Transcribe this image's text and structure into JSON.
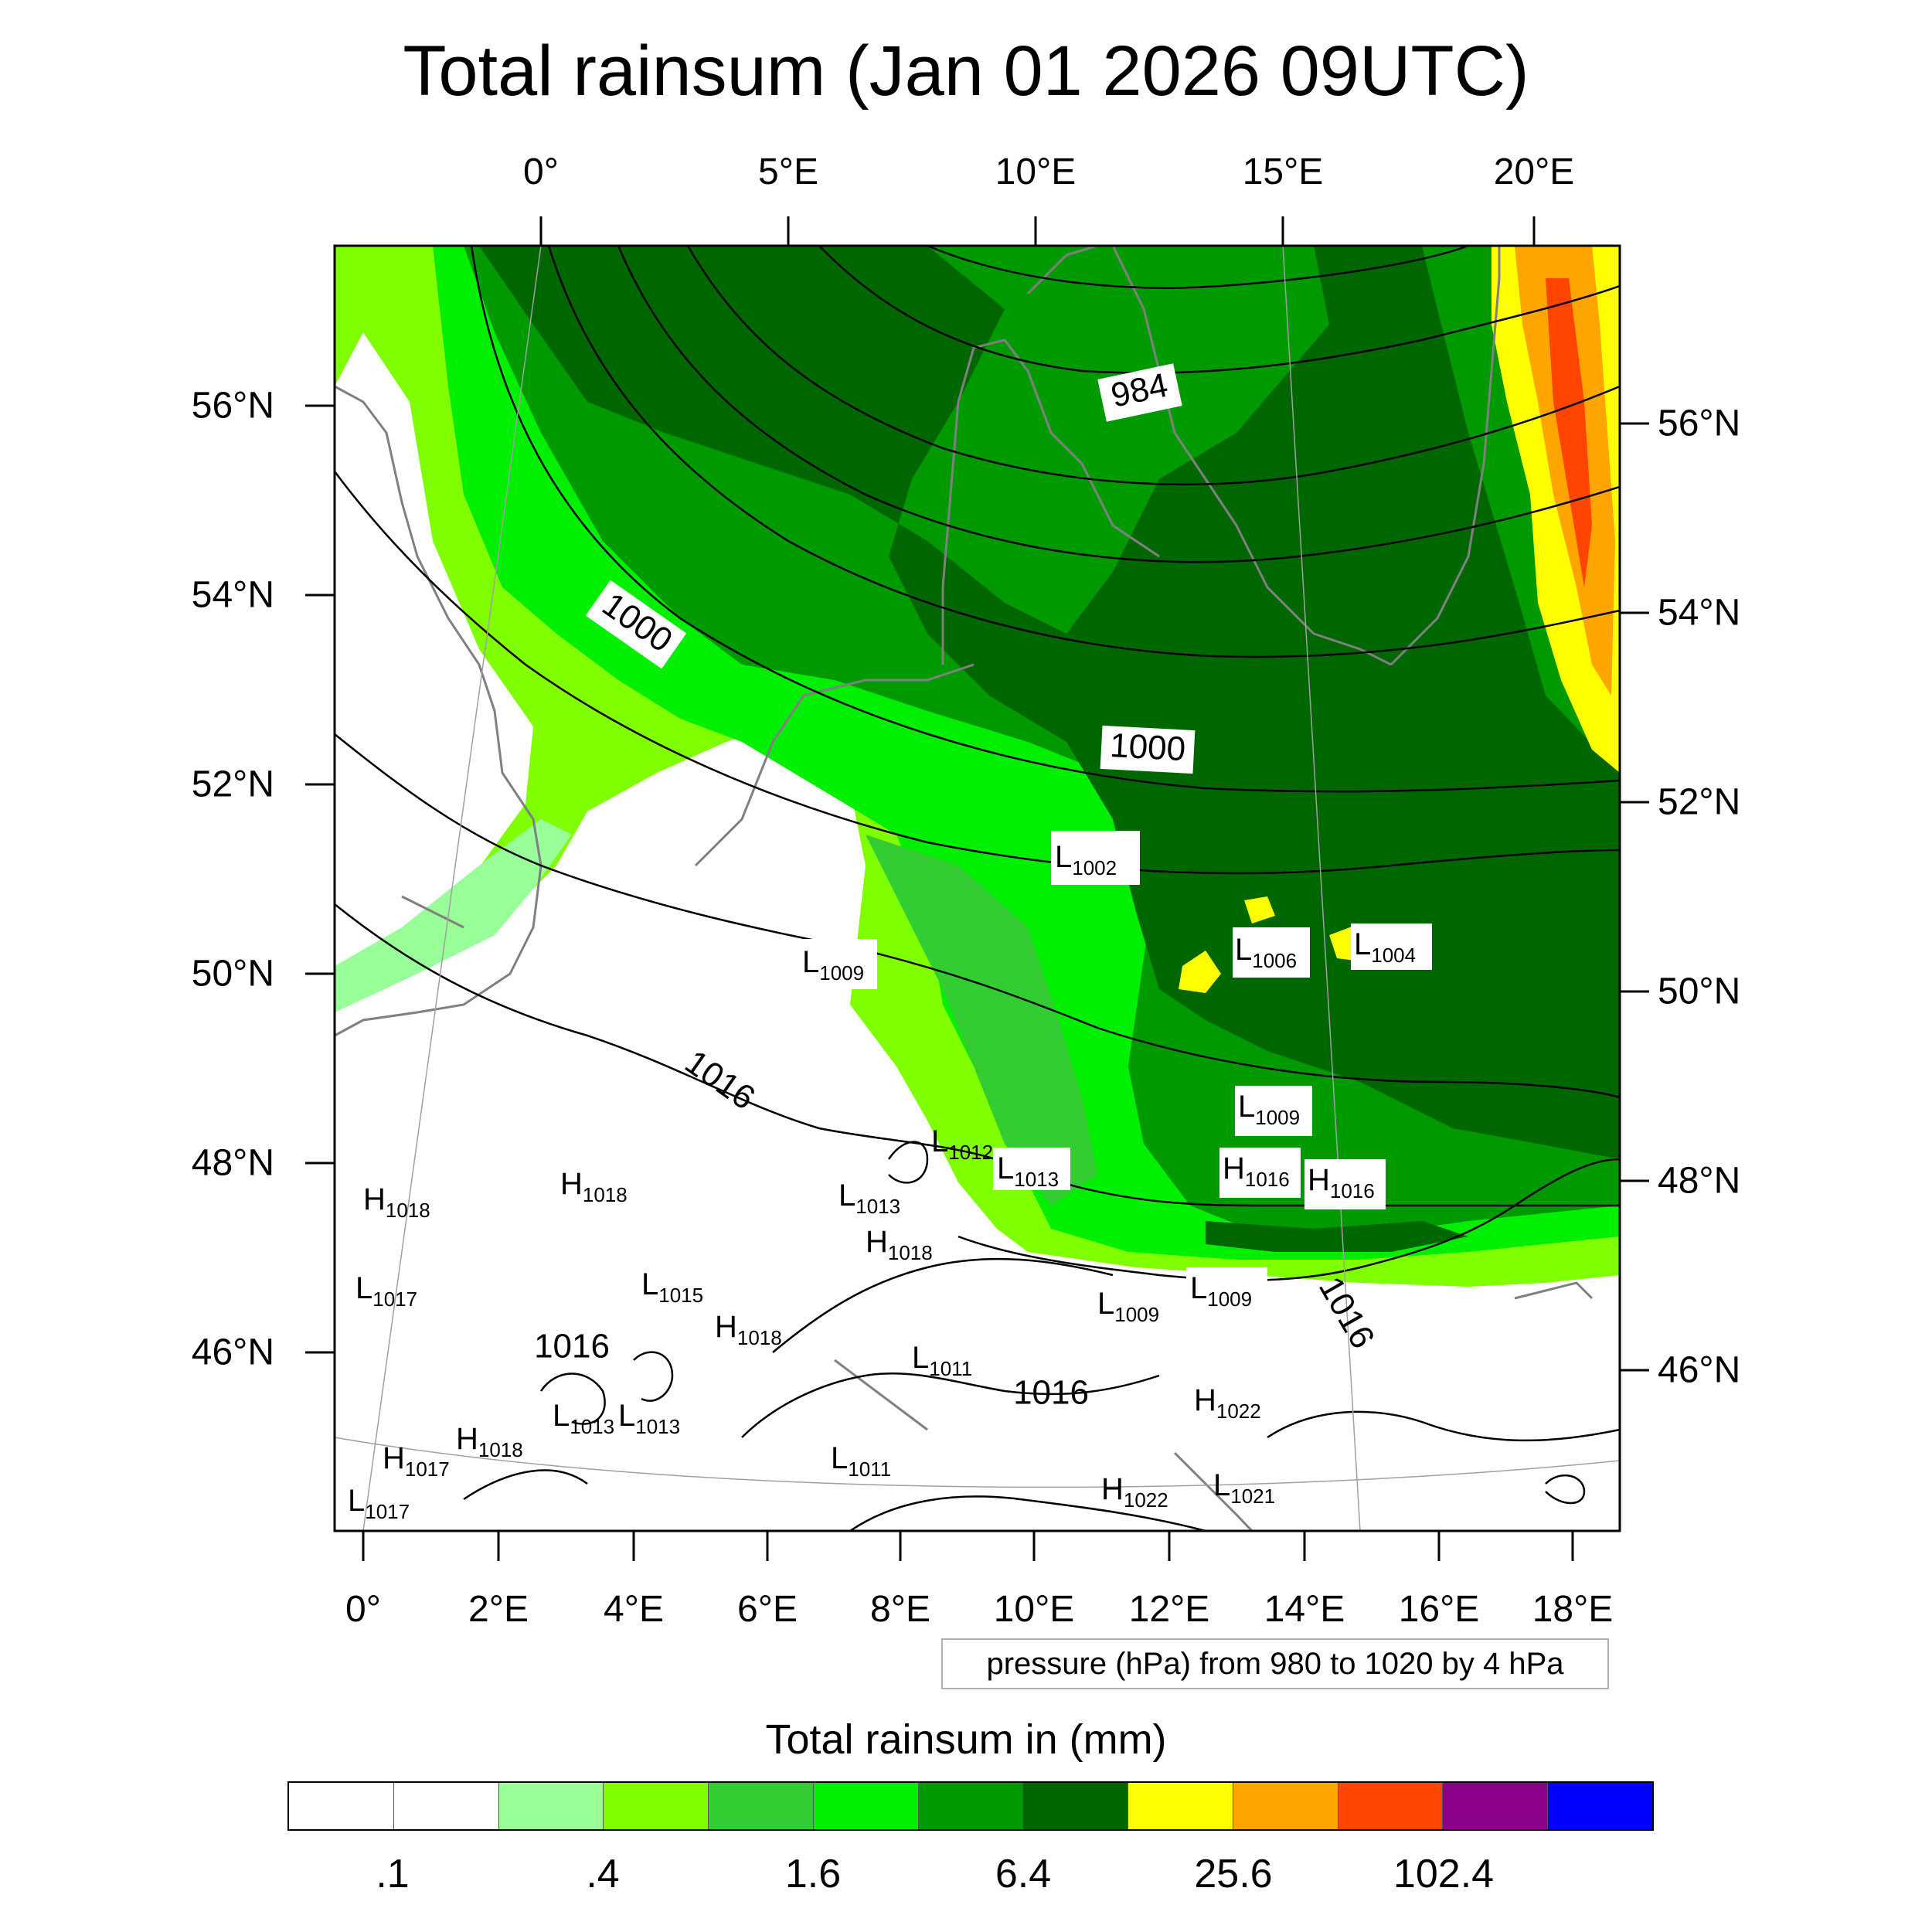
{
  "title": "Total rainsum (Jan 01 2026 09UTC)",
  "axes": {
    "top_lon_labels": [
      "0°",
      "5°E",
      "10°E",
      "15°E",
      "20°E"
    ],
    "bottom_lon_labels": [
      "0°",
      "2°E",
      "4°E",
      "6°E",
      "8°E",
      "10°E",
      "12°E",
      "14°E",
      "16°E",
      "18°E"
    ],
    "left_lat_labels": [
      "56°N",
      "54°N",
      "52°N",
      "50°N",
      "48°N",
      "46°N"
    ],
    "right_lat_labels": [
      "56°N",
      "54°N",
      "52°N",
      "50°N",
      "48°N",
      "46°N"
    ]
  },
  "pressure_labels": [
    {
      "text": "984",
      "type": "contour"
    },
    {
      "text": "1000",
      "type": "contour"
    },
    {
      "text": "1000",
      "type": "contour"
    },
    {
      "text": "1016",
      "type": "contour"
    },
    {
      "text": "1016",
      "type": "contour"
    },
    {
      "text": "1016",
      "type": "contour"
    },
    {
      "text": "1016",
      "type": "contour"
    }
  ],
  "centers": [
    {
      "letter": "L",
      "value": "1002"
    },
    {
      "letter": "L",
      "value": "1009"
    },
    {
      "letter": "L",
      "value": "1006"
    },
    {
      "letter": "L",
      "value": "1004"
    },
    {
      "letter": "L",
      "value": "1009"
    },
    {
      "letter": "H",
      "value": "1016"
    },
    {
      "letter": "H",
      "value": "1016"
    },
    {
      "letter": "L",
      "value": "1012"
    },
    {
      "letter": "L",
      "value": "1013"
    },
    {
      "letter": "L",
      "value": "1013"
    },
    {
      "letter": "H",
      "value": "1018"
    },
    {
      "letter": "H",
      "value": "1018"
    },
    {
      "letter": "H",
      "value": "1018"
    },
    {
      "letter": "L",
      "value": "1017"
    },
    {
      "letter": "L",
      "value": "1015"
    },
    {
      "letter": "H",
      "value": "1018"
    },
    {
      "letter": "L",
      "value": "1009"
    },
    {
      "letter": "L",
      "value": "1009"
    },
    {
      "letter": "L",
      "value": "1011"
    },
    {
      "letter": "H",
      "value": "1022"
    },
    {
      "letter": "L",
      "value": "1013"
    },
    {
      "letter": "L",
      "value": "1013"
    },
    {
      "letter": "H",
      "value": "1018"
    },
    {
      "letter": "H",
      "value": "1017"
    },
    {
      "letter": "L",
      "value": "1017"
    },
    {
      "letter": "L",
      "value": "1011"
    },
    {
      "letter": "H",
      "value": "1022"
    },
    {
      "letter": "L",
      "value": "1021"
    }
  ],
  "info_box": "pressure (hPa) from 980 to 1020 by 4 hPa",
  "colorbar": {
    "title": "Total rainsum in (mm)",
    "colors": [
      "#ffffff",
      "#ffffff",
      "#99ff99",
      "#80ff00",
      "#33cc33",
      "#00ee00",
      "#009900",
      "#006600",
      "#ffff00",
      "#ffa500",
      "#ff4500",
      "#8b008b",
      "#0000ff"
    ],
    "labels": [
      ".1",
      ".4",
      "1.6",
      "6.4",
      "25.6",
      "102.4"
    ]
  },
  "map_colors": {
    "light_green": "#99ff99",
    "chartreuse": "#80ff00",
    "green": "#00ee00",
    "mid_green": "#33cc33",
    "dark_green": "#009900",
    "darkest_green": "#006600",
    "yellow": "#ffff00",
    "orange": "#ffa500",
    "red_orange": "#ff4500",
    "coast": "#808080",
    "isobar": "#000000"
  }
}
